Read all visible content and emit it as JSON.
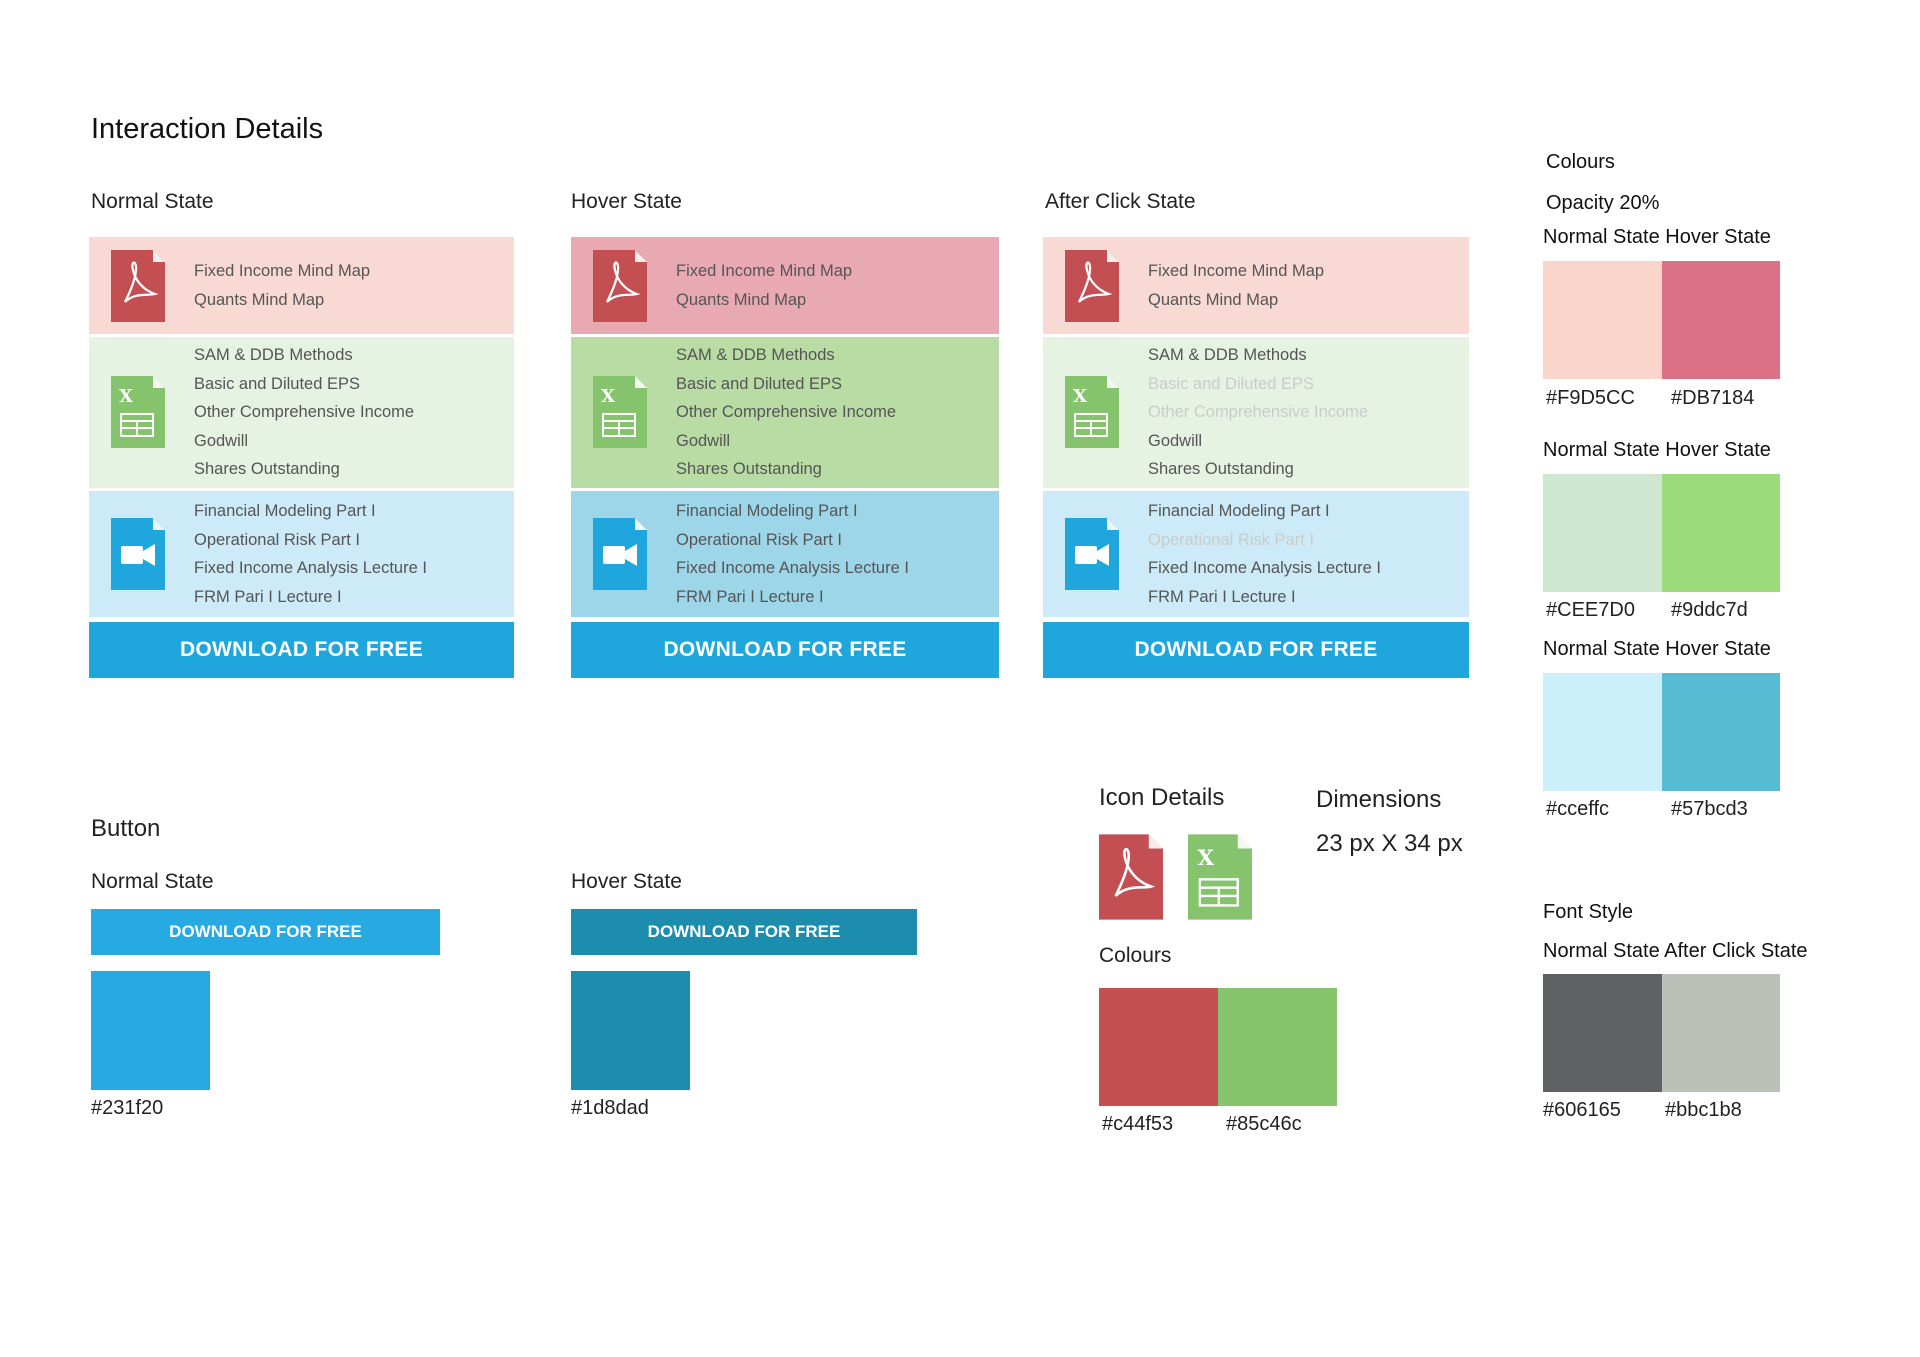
{
  "page_title": "Interaction Details",
  "states": {
    "normal": "Normal State",
    "hover": "Hover State",
    "after_click": "After Click State"
  },
  "cards": {
    "pdf_items": [
      "Fixed Income Mind Map",
      "Quants Mind Map"
    ],
    "xls_items": [
      "SAM & DDB Methods",
      "Basic and Diluted EPS",
      "Other Comprehensive Income",
      "Godwill",
      "Shares Outstanding"
    ],
    "video_items": [
      "Financial Modeling Part I",
      "Operational Risk Part I",
      "Fixed Income Analysis Lecture I",
      "FRM Pari I Lecture I"
    ],
    "download_label": "DOWNLOAD FOR FREE"
  },
  "button_section": {
    "title": "Button",
    "normal_label": "Normal State",
    "hover_label": "Hover State",
    "button_label": "DOWNLOAD FOR FREE",
    "normal_hex": "#231f20",
    "hover_hex": "#1d8dad"
  },
  "icon_details": {
    "title": "Icon Details",
    "dimensions_title": "Dimensions",
    "dimensions_value": "23 px X 34 px",
    "colours_title": "Colours",
    "hex_red": "#c44f53",
    "hex_green": "#85c46c"
  },
  "colours_panel": {
    "title": "Colours",
    "opacity": "Opacity 20%",
    "pairs": [
      {
        "label": "Normal State Hover State",
        "normal_hex": "#F9D5CC",
        "hover_hex": "#DB7184"
      },
      {
        "label": "Normal State Hover State",
        "normal_hex": "#CEE7D0",
        "hover_hex": "#9ddc7d"
      },
      {
        "label": "Normal State Hover State",
        "normal_hex": "#cceffc",
        "hover_hex": "#57bcd3"
      }
    ]
  },
  "font_style": {
    "title": "Font Style",
    "label": "Normal State After Click State",
    "normal_hex": "#606165",
    "after_hex": "#bbc1b8"
  },
  "colors": {
    "pdf_normal": "#f9d9d3",
    "pdf_hover": "#e9a9b3",
    "xls_normal": "#e6f2e2",
    "xls_hover": "#b9dca5",
    "vid_normal": "#cceaf7",
    "vid_hover": "#9dd6e8",
    "download": "#1ea6dd",
    "btn_normal": "#27a9e1",
    "btn_hover": "#1d8dad",
    "icon_red": "#c44f53",
    "icon_green": "#85c46c",
    "icon_blue": "#1ea6dd",
    "font_normal": "#606165",
    "font_after": "#bbc1b8"
  }
}
